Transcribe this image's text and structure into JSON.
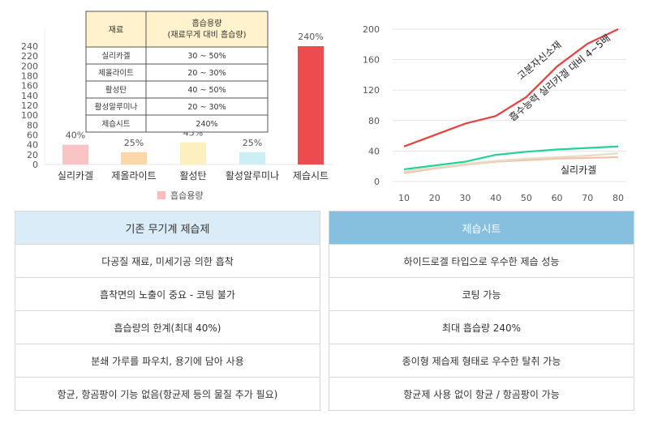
{
  "chart_data": [
    {
      "type": "bar",
      "categories": [
        "실리카겔",
        "제올라이트",
        "활성탄",
        "활성알루미나",
        "제습시트"
      ],
      "values": [
        40,
        25,
        45,
        25,
        240
      ],
      "value_labels": [
        "40%",
        "25%",
        "45%",
        "25%",
        "240%"
      ],
      "colors": [
        "#fbc4c4",
        "#fdd6a9",
        "#fdf0bf",
        "#cdeef2",
        "#ee4b4e"
      ],
      "legend": [
        "흡습용량"
      ],
      "legend_color": "#fbbcbc",
      "legend_position": "bottom",
      "yticks": [
        0,
        20,
        40,
        60,
        80,
        100,
        120,
        140,
        160,
        180,
        200,
        220,
        240
      ],
      "ylim": [
        0,
        260
      ],
      "grid": false,
      "inset_table": {
        "headers": [
          "재료",
          "흡습용량\n(재료무게 대비 흡습량)"
        ],
        "rows": [
          [
            "실리카겔",
            "30 ~ 50%"
          ],
          [
            "제올라이트",
            "20 ~ 30%"
          ],
          [
            "활성탄",
            "40 ~ 50%"
          ],
          [
            "활성알루미나",
            "20 ~ 30%"
          ],
          [
            "제습시트",
            "240%"
          ]
        ]
      }
    },
    {
      "type": "line",
      "x": [
        10,
        20,
        30,
        40,
        50,
        60,
        70,
        80
      ],
      "xlim": [
        10,
        80
      ],
      "ylim": [
        0,
        200
      ],
      "yticks": [
        0,
        40,
        80,
        120,
        160,
        200
      ],
      "grid": true,
      "series": [
        {
          "name": "고분자신소재",
          "color": "#e8413d",
          "values": [
            46,
            61,
            76,
            86,
            111,
            151,
            181,
            200
          ]
        },
        {
          "name": "실리카겔",
          "color": "#22d296",
          "values": [
            16,
            21,
            26,
            35,
            39,
            42,
            44,
            46
          ]
        },
        {
          "name": "",
          "color": "#f4c2a6",
          "values": [
            11,
            17,
            22,
            26,
            28,
            30,
            31,
            32
          ]
        },
        {
          "name": "",
          "color": "#e6dcc6",
          "values": [
            13,
            18,
            23,
            27,
            30,
            32,
            34,
            37
          ]
        }
      ],
      "annotations": [
        "고분자신소재",
        "흡수능력 실리카겔 대비 4~5배",
        "실리카겔"
      ]
    }
  ],
  "table_left": {
    "header": "기존 무기계 제습제",
    "rows": [
      "다공질 재료, 미세기공 의한 흡착",
      "흡착면의 노출이 중요 - 코팅 불가",
      "흡습량의 한계(최대 40%)",
      "분쇄 가루를 파우치, 용기에 담아 사용",
      "항균, 항곰팡이 기능 없음(항균제 등의 물질 추가 필요)"
    ]
  },
  "table_right": {
    "header": "제습시트",
    "rows": [
      "하이드로겔 타입으로 우수한 제습 성능",
      "코팅 가능",
      "최대 흡습량 240%",
      "종이형 제습제 형태로 우수한 탈취 가능",
      "항균제 사용 없이 항균 / 항곰팡이 가능"
    ]
  }
}
